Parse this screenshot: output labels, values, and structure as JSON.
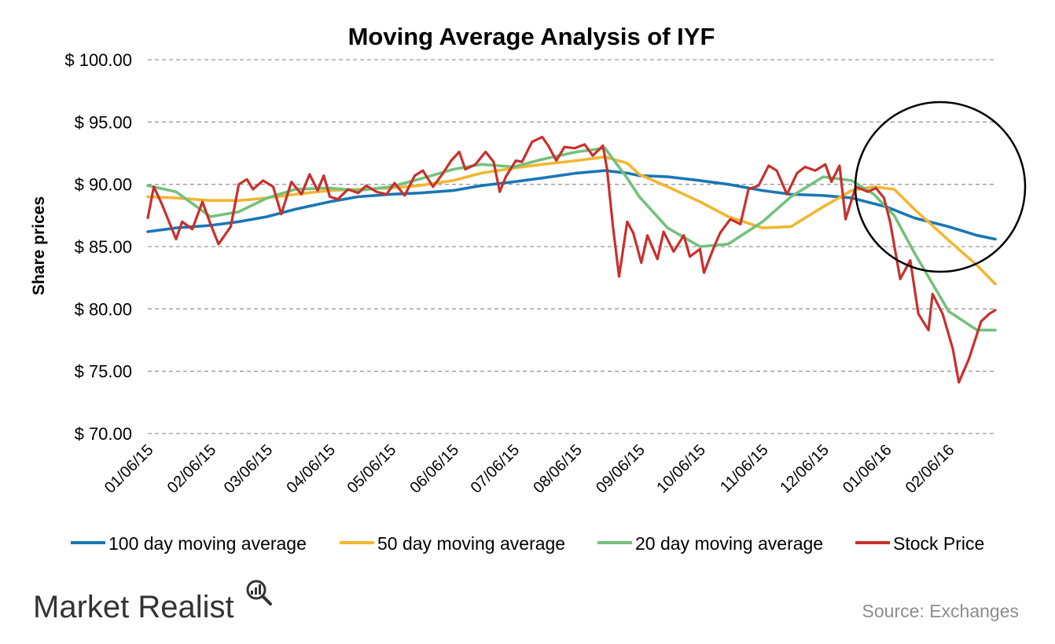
{
  "chart_data": {
    "type": "line",
    "title": "Moving Average Analysis of IYF",
    "ylabel": "Share prices",
    "ylim": [
      70,
      100
    ],
    "yticks": [
      100,
      95,
      90,
      85,
      80,
      75,
      70
    ],
    "ytick_labels": [
      "$ 100.00",
      "$ 95.00",
      "$ 90.00",
      "$ 85.00",
      "$ 80.00",
      "$ 75.00",
      "$ 70.00"
    ],
    "xlim": [
      "2015-01-06",
      "2016-02-29"
    ],
    "xtick_labels": [
      "01/06/15",
      "02/06/15",
      "03/06/15",
      "04/06/15",
      "05/06/15",
      "06/06/15",
      "07/06/15",
      "08/06/15",
      "09/06/15",
      "10/06/15",
      "11/06/15",
      "12/06/15",
      "01/06/16",
      "02/06/16"
    ],
    "xtick_dates": [
      "2015-01-06",
      "2015-02-06",
      "2015-03-06",
      "2015-04-06",
      "2015-05-06",
      "2015-06-06",
      "2015-07-06",
      "2015-08-06",
      "2015-09-06",
      "2015-10-06",
      "2015-11-06",
      "2015-12-06",
      "2016-01-06",
      "2016-02-06"
    ],
    "grid": "horizontal dashed",
    "legend_position": "bottom",
    "annotation": "circle highlighting the late December 2015 to February 2016 decline",
    "series": [
      {
        "name": "100 day moving average",
        "color": "#1a77b5",
        "points": [
          [
            "2015-01-06",
            86.2
          ],
          [
            "2015-01-20",
            86.5
          ],
          [
            "2015-02-06",
            86.7
          ],
          [
            "2015-02-20",
            87.0
          ],
          [
            "2015-03-06",
            87.4
          ],
          [
            "2015-03-20",
            88.0
          ],
          [
            "2015-04-06",
            88.6
          ],
          [
            "2015-04-20",
            89.0
          ],
          [
            "2015-05-06",
            89.2
          ],
          [
            "2015-05-20",
            89.3
          ],
          [
            "2015-06-06",
            89.5
          ],
          [
            "2015-06-20",
            89.9
          ],
          [
            "2015-07-06",
            90.2
          ],
          [
            "2015-07-20",
            90.5
          ],
          [
            "2015-08-06",
            90.9
          ],
          [
            "2015-08-20",
            91.1
          ],
          [
            "2015-08-31",
            90.9
          ],
          [
            "2015-09-06",
            90.7
          ],
          [
            "2015-09-20",
            90.6
          ],
          [
            "2015-10-06",
            90.3
          ],
          [
            "2015-10-20",
            90.0
          ],
          [
            "2015-11-06",
            89.5
          ],
          [
            "2015-11-20",
            89.2
          ],
          [
            "2015-12-06",
            89.1
          ],
          [
            "2015-12-20",
            88.9
          ],
          [
            "2016-01-06",
            88.2
          ],
          [
            "2016-01-20",
            87.3
          ],
          [
            "2016-02-06",
            86.6
          ],
          [
            "2016-02-20",
            85.9
          ],
          [
            "2016-02-29",
            85.6
          ]
        ]
      },
      {
        "name": "50 day moving average",
        "color": "#f2b631",
        "points": [
          [
            "2015-01-06",
            89.0
          ],
          [
            "2015-01-20",
            88.9
          ],
          [
            "2015-02-06",
            88.7
          ],
          [
            "2015-02-20",
            88.7
          ],
          [
            "2015-03-06",
            88.9
          ],
          [
            "2015-03-20",
            89.2
          ],
          [
            "2015-04-06",
            89.5
          ],
          [
            "2015-04-20",
            89.6
          ],
          [
            "2015-05-06",
            89.7
          ],
          [
            "2015-05-20",
            89.9
          ],
          [
            "2015-06-06",
            90.3
          ],
          [
            "2015-06-20",
            90.9
          ],
          [
            "2015-07-06",
            91.3
          ],
          [
            "2015-07-20",
            91.6
          ],
          [
            "2015-08-06",
            91.9
          ],
          [
            "2015-08-20",
            92.2
          ],
          [
            "2015-08-31",
            91.7
          ],
          [
            "2015-09-06",
            90.8
          ],
          [
            "2015-09-20",
            89.8
          ],
          [
            "2015-10-06",
            88.6
          ],
          [
            "2015-10-20",
            87.4
          ],
          [
            "2015-11-06",
            86.5
          ],
          [
            "2015-11-20",
            86.6
          ],
          [
            "2015-12-06",
            88.2
          ],
          [
            "2015-12-20",
            89.5
          ],
          [
            "2015-12-31",
            89.8
          ],
          [
            "2016-01-10",
            89.6
          ],
          [
            "2016-01-20",
            88.0
          ],
          [
            "2016-02-06",
            85.5
          ],
          [
            "2016-02-20",
            83.5
          ],
          [
            "2016-02-29",
            82.0
          ]
        ]
      },
      {
        "name": "20 day moving average",
        "color": "#73c17c",
        "points": [
          [
            "2015-01-06",
            89.9
          ],
          [
            "2015-01-20",
            89.4
          ],
          [
            "2015-02-06",
            87.4
          ],
          [
            "2015-02-20",
            87.8
          ],
          [
            "2015-03-06",
            88.9
          ],
          [
            "2015-03-20",
            89.6
          ],
          [
            "2015-04-06",
            89.7
          ],
          [
            "2015-04-20",
            89.5
          ],
          [
            "2015-05-06",
            89.8
          ],
          [
            "2015-05-20",
            90.4
          ],
          [
            "2015-06-06",
            91.2
          ],
          [
            "2015-06-20",
            91.6
          ],
          [
            "2015-07-06",
            91.4
          ],
          [
            "2015-07-20",
            92.0
          ],
          [
            "2015-08-06",
            92.6
          ],
          [
            "2015-08-20",
            92.9
          ],
          [
            "2015-08-31",
            90.5
          ],
          [
            "2015-09-06",
            89.0
          ],
          [
            "2015-09-20",
            86.5
          ],
          [
            "2015-10-06",
            85.0
          ],
          [
            "2015-10-20",
            85.2
          ],
          [
            "2015-11-06",
            87.0
          ],
          [
            "2015-11-20",
            89.0
          ],
          [
            "2015-12-06",
            90.6
          ],
          [
            "2015-12-20",
            90.3
          ],
          [
            "2015-12-31",
            89.2
          ],
          [
            "2016-01-10",
            87.5
          ],
          [
            "2016-01-20",
            84.5
          ],
          [
            "2016-02-06",
            79.8
          ],
          [
            "2016-02-20",
            78.3
          ],
          [
            "2016-02-29",
            78.3
          ]
        ]
      },
      {
        "name": "Stock Price",
        "color": "#c9302c",
        "points": [
          [
            "2015-01-06",
            87.3
          ],
          [
            "2015-01-09",
            89.8
          ],
          [
            "2015-01-13",
            88.4
          ],
          [
            "2015-01-16",
            87.2
          ],
          [
            "2015-01-20",
            85.6
          ],
          [
            "2015-01-23",
            87.0
          ],
          [
            "2015-01-28",
            86.4
          ],
          [
            "2015-02-02",
            88.6
          ],
          [
            "2015-02-06",
            86.8
          ],
          [
            "2015-02-10",
            85.2
          ],
          [
            "2015-02-16",
            86.6
          ],
          [
            "2015-02-20",
            90.0
          ],
          [
            "2015-02-24",
            90.4
          ],
          [
            "2015-02-27",
            89.6
          ],
          [
            "2015-03-04",
            90.3
          ],
          [
            "2015-03-09",
            89.8
          ],
          [
            "2015-03-13",
            87.6
          ],
          [
            "2015-03-18",
            90.2
          ],
          [
            "2015-03-23",
            89.2
          ],
          [
            "2015-03-27",
            90.8
          ],
          [
            "2015-03-31",
            89.5
          ],
          [
            "2015-04-03",
            90.7
          ],
          [
            "2015-04-06",
            89.0
          ],
          [
            "2015-04-10",
            88.8
          ],
          [
            "2015-04-15",
            89.6
          ],
          [
            "2015-04-20",
            89.3
          ],
          [
            "2015-04-24",
            89.9
          ],
          [
            "2015-04-29",
            89.4
          ],
          [
            "2015-05-04",
            89.2
          ],
          [
            "2015-05-08",
            90.1
          ],
          [
            "2015-05-13",
            89.1
          ],
          [
            "2015-05-18",
            90.7
          ],
          [
            "2015-05-22",
            91.1
          ],
          [
            "2015-05-27",
            89.8
          ],
          [
            "2015-06-01",
            90.9
          ],
          [
            "2015-06-05",
            91.9
          ],
          [
            "2015-06-09",
            92.6
          ],
          [
            "2015-06-12",
            91.2
          ],
          [
            "2015-06-17",
            91.6
          ],
          [
            "2015-06-22",
            92.6
          ],
          [
            "2015-06-26",
            91.8
          ],
          [
            "2015-06-29",
            89.4
          ],
          [
            "2015-07-02",
            90.6
          ],
          [
            "2015-07-07",
            91.9
          ],
          [
            "2015-07-10",
            91.8
          ],
          [
            "2015-07-15",
            93.4
          ],
          [
            "2015-07-20",
            93.8
          ],
          [
            "2015-07-23",
            93.1
          ],
          [
            "2015-07-27",
            91.9
          ],
          [
            "2015-07-31",
            93.0
          ],
          [
            "2015-08-05",
            92.9
          ],
          [
            "2015-08-10",
            93.2
          ],
          [
            "2015-08-14",
            92.3
          ],
          [
            "2015-08-19",
            93.1
          ],
          [
            "2015-08-21",
            91.3
          ],
          [
            "2015-08-24",
            86.6
          ],
          [
            "2015-08-27",
            82.6
          ],
          [
            "2015-08-31",
            87.0
          ],
          [
            "2015-09-03",
            86.1
          ],
          [
            "2015-09-07",
            83.7
          ],
          [
            "2015-09-10",
            85.9
          ],
          [
            "2015-09-15",
            84.0
          ],
          [
            "2015-09-18",
            86.2
          ],
          [
            "2015-09-23",
            84.6
          ],
          [
            "2015-09-28",
            85.9
          ],
          [
            "2015-10-01",
            84.2
          ],
          [
            "2015-10-06",
            84.8
          ],
          [
            "2015-10-08",
            82.9
          ],
          [
            "2015-10-13",
            85.0
          ],
          [
            "2015-10-16",
            86.1
          ],
          [
            "2015-10-21",
            87.2
          ],
          [
            "2015-10-26",
            86.8
          ],
          [
            "2015-10-30",
            89.6
          ],
          [
            "2015-11-04",
            89.9
          ],
          [
            "2015-11-09",
            91.5
          ],
          [
            "2015-11-13",
            91.1
          ],
          [
            "2015-11-18",
            89.2
          ],
          [
            "2015-11-23",
            90.9
          ],
          [
            "2015-11-27",
            91.4
          ],
          [
            "2015-12-02",
            91.1
          ],
          [
            "2015-12-07",
            91.6
          ],
          [
            "2015-12-10",
            90.2
          ],
          [
            "2015-12-14",
            91.5
          ],
          [
            "2015-12-17",
            87.2
          ],
          [
            "2015-12-22",
            89.8
          ],
          [
            "2015-12-28",
            89.4
          ],
          [
            "2016-01-01",
            89.7
          ],
          [
            "2016-01-05",
            88.9
          ],
          [
            "2016-01-08",
            87.0
          ],
          [
            "2016-01-13",
            82.4
          ],
          [
            "2016-01-18",
            83.9
          ],
          [
            "2016-01-22",
            79.6
          ],
          [
            "2016-01-27",
            78.3
          ],
          [
            "2016-01-29",
            81.2
          ],
          [
            "2016-02-03",
            79.6
          ],
          [
            "2016-02-08",
            76.8
          ],
          [
            "2016-02-11",
            74.1
          ],
          [
            "2016-02-16",
            76.0
          ],
          [
            "2016-02-22",
            79.0
          ],
          [
            "2016-02-26",
            79.6
          ],
          [
            "2016-02-29",
            79.9
          ]
        ]
      }
    ]
  },
  "footer": {
    "brand": "Market Realist",
    "source": "Source: Exchanges"
  }
}
